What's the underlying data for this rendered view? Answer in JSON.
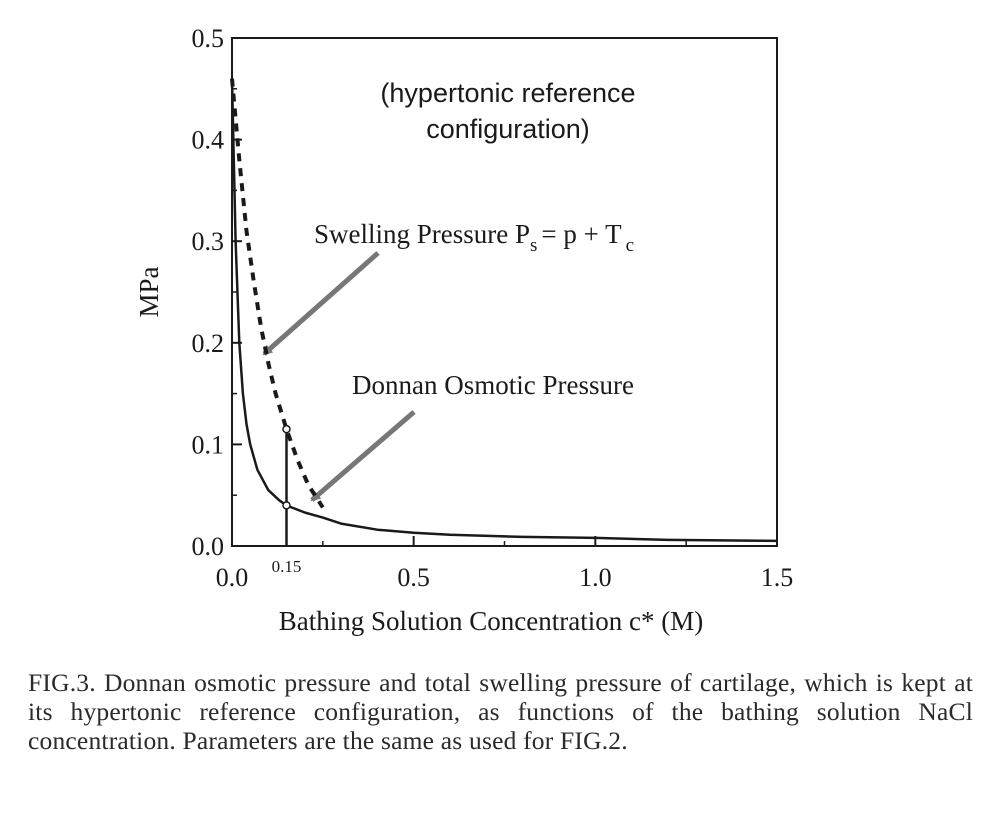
{
  "chart_data": {
    "type": "line",
    "xlabel": "Bathing Solution Concentration c* (M)",
    "ylabel": "MPa",
    "xlim": [
      0,
      1.5
    ],
    "ylim": [
      0,
      0.5
    ],
    "x_ticks": [
      "0.0",
      "0.5",
      "1.0",
      "1.5"
    ],
    "y_ticks": [
      "0.0",
      "0.1",
      "0.2",
      "0.3",
      "0.4",
      "0.5"
    ],
    "grid": false,
    "extra_tick_label": "0.15",
    "series": [
      {
        "name": "Donnan Osmotic Pressure",
        "style": "solid",
        "x": [
          0.0,
          0.01,
          0.02,
          0.03,
          0.04,
          0.05,
          0.07,
          0.1,
          0.13,
          0.15,
          0.2,
          0.25,
          0.3,
          0.4,
          0.5,
          0.6,
          0.8,
          1.0,
          1.2,
          1.5
        ],
        "y": [
          0.46,
          0.3,
          0.2,
          0.15,
          0.12,
          0.1,
          0.075,
          0.055,
          0.045,
          0.04,
          0.033,
          0.028,
          0.022,
          0.016,
          0.013,
          0.011,
          0.009,
          0.008,
          0.006,
          0.005
        ]
      },
      {
        "name": "Swelling Pressure",
        "style": "dashed",
        "x": [
          0.0,
          0.02,
          0.04,
          0.06,
          0.08,
          0.1,
          0.12,
          0.15,
          0.18,
          0.21,
          0.25
        ],
        "y": [
          0.46,
          0.38,
          0.31,
          0.26,
          0.215,
          0.18,
          0.15,
          0.115,
          0.085,
          0.06,
          0.038
        ]
      }
    ],
    "marker_segment": {
      "x": 0.15,
      "y_low": 0.0,
      "y_high": 0.115
    }
  },
  "annotations": {
    "reference_line1": "(hypertonic reference",
    "reference_line2": "configuration)",
    "swelling_label": "Swelling Pressure P",
    "swelling_sub_s": "s",
    "swelling_eq": "= p + T",
    "swelling_sub_c": "c",
    "donnan_label": "Donnan Osmotic Pressure"
  },
  "colors": {
    "ink": "#1a1a1a",
    "arrow": "#777777"
  },
  "caption": "FIG.3. Donnan osmotic pressure and total swelling pressure of cartilage, which is kept at its hypertonic reference configuration, as functions of the bathing solution NaCl concentration. Parameters are the same as used for FIG.2."
}
